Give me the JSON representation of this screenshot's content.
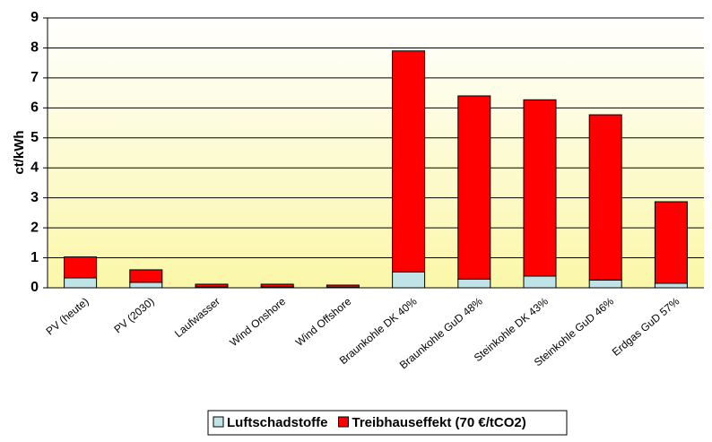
{
  "chart_data": {
    "type": "stacked-bar",
    "y_label": "ct/kWh",
    "categories": [
      "PV (heute)",
      "PV (2030)",
      "Laufwasser",
      "Wind Onshore",
      "Wind Offshore",
      "Braunkohle DK 40%",
      "Braunkohle GuD 48%",
      "Steinkohle DK 43%",
      "Steinkohle GuD 46%",
      "Erdgas GuD 57%"
    ],
    "series": [
      {
        "name": "Luftschadstoffe",
        "color": "#bfe3e6",
        "values": [
          0.33,
          0.18,
          0.03,
          0.03,
          0.02,
          0.53,
          0.29,
          0.39,
          0.26,
          0.15
        ]
      },
      {
        "name": "Treibhauseffekt (70 €/tCO2)",
        "color": "#ff0000",
        "values": [
          0.7,
          0.42,
          0.09,
          0.09,
          0.07,
          7.37,
          6.11,
          5.88,
          5.51,
          2.72
        ]
      }
    ],
    "ylim": [
      0,
      9
    ],
    "yticks": [
      0,
      1,
      2,
      3,
      4,
      5,
      6,
      7,
      8,
      9
    ],
    "grid": true
  }
}
